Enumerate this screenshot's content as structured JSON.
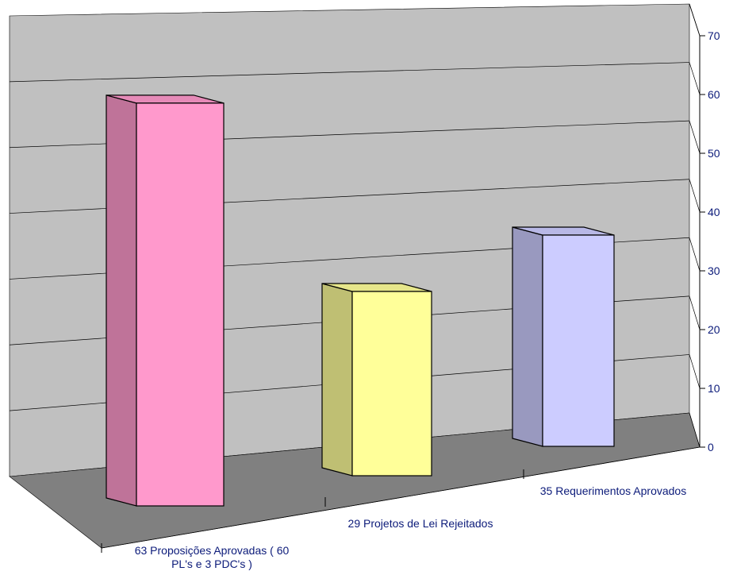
{
  "chart_data": {
    "type": "bar",
    "title": "",
    "xlabel": "",
    "ylabel": "",
    "categories": [
      "63 Proposições Aprovadas ( 60 PL's e 3 PDC's )",
      "29 Projetos de Lei Rejeitados",
      "35 Requerimentos Aprovados"
    ],
    "values": [
      63,
      29,
      35
    ],
    "ylim": [
      0,
      70
    ],
    "yticks": [
      0,
      10,
      20,
      30,
      40,
      50,
      60,
      70
    ],
    "grid": true,
    "legend": "none",
    "style": "3d-columns"
  },
  "colors": {
    "bars": [
      "#ff99cc",
      "#ffff99",
      "#ccccff"
    ],
    "back_wall": "#c0c0c0",
    "floor": "#808080",
    "text": "#0c1b7a"
  }
}
